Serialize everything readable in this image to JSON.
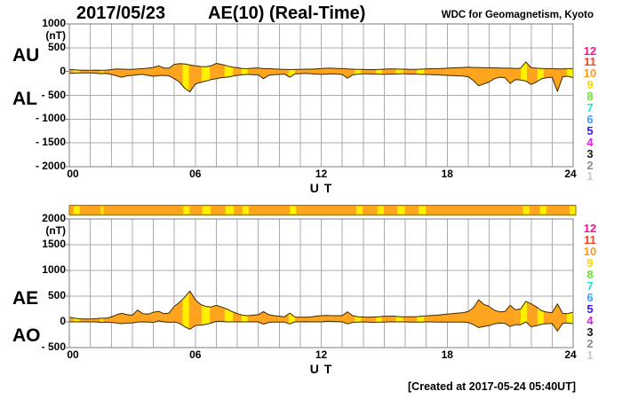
{
  "header": {
    "date": "2017/05/23",
    "title": "AE(10) (Real-Time)",
    "credit": "WDC for Geomagnetism, Kyoto"
  },
  "footer": {
    "created": "[Created at 2017-05-24 05:40UT]"
  },
  "colors": {
    "fill_10_stations": "#FFA41E",
    "fill_9_stations": "#FFF000",
    "curve_outline": "#3A2A00",
    "grid": "#ABABAB",
    "frame": "#7D7D7D",
    "bar_border": "#8B7500",
    "text": "#000000"
  },
  "station_scale": {
    "values": [
      "12",
      "11",
      "10",
      "9",
      "8",
      "7",
      "6",
      "5",
      "4",
      "3",
      "2",
      "1"
    ],
    "colors": [
      "#F2188C",
      "#FF4019",
      "#FF9C19",
      "#F0DC00",
      "#66E62B",
      "#19E6C8",
      "#3CA0FF",
      "#4019E6",
      "#E619E6",
      "#191919",
      "#8C8C8C",
      "#C8C8C8"
    ]
  },
  "availability_bar": {
    "full_value": 10,
    "partial_value": 9,
    "intervals_9_stations": [
      [
        0.2,
        0.5
      ],
      [
        1.5,
        1.62
      ],
      [
        5.4,
        5.7
      ],
      [
        6.3,
        6.7
      ],
      [
        7.4,
        7.8
      ],
      [
        8.2,
        8.5
      ],
      [
        10.45,
        10.75
      ],
      [
        13.6,
        13.9
      ],
      [
        14.6,
        14.9
      ],
      [
        15.55,
        15.9
      ],
      [
        16.55,
        16.9
      ],
      [
        21.5,
        21.8
      ],
      [
        22.3,
        22.6
      ],
      [
        23.7,
        24.0
      ]
    ]
  },
  "chart_data": [
    {
      "type": "area",
      "title": "AU and AL indices",
      "left_labels": [
        "AU",
        "AL"
      ],
      "ylabel_unit": "(nT)",
      "xlabel": "U T",
      "ylim": [
        -2000,
        1000
      ],
      "yticks": [
        {
          "v": 1000,
          "label": "1000"
        },
        {
          "v": 500,
          "label": "500"
        },
        {
          "v": 0,
          "label": "0"
        },
        {
          "v": -500,
          "label": "- 500"
        },
        {
          "v": -1000,
          "label": "- 1000"
        },
        {
          "v": -1500,
          "label": "- 1500"
        },
        {
          "v": -2000,
          "label": "- 2000"
        }
      ],
      "xticks": [
        {
          "v": 0,
          "label": "00"
        },
        {
          "v": 6,
          "label": "06"
        },
        {
          "v": 12,
          "label": "12"
        },
        {
          "v": 18,
          "label": "18"
        },
        {
          "v": 24,
          "label": "24"
        }
      ],
      "x": [
        0,
        0.25,
        0.5,
        0.75,
        1,
        1.25,
        1.5,
        1.75,
        2,
        2.25,
        2.5,
        2.75,
        3,
        3.25,
        3.5,
        3.75,
        4,
        4.25,
        4.5,
        4.75,
        5,
        5.25,
        5.5,
        5.75,
        6,
        6.25,
        6.5,
        6.75,
        7,
        7.25,
        7.5,
        7.75,
        8,
        8.25,
        8.5,
        8.75,
        9,
        9.25,
        9.5,
        9.75,
        10,
        10.25,
        10.5,
        10.75,
        11,
        11.25,
        11.5,
        11.75,
        12,
        12.25,
        12.5,
        12.75,
        13,
        13.25,
        13.5,
        13.75,
        14,
        14.25,
        14.5,
        14.75,
        15,
        15.25,
        15.5,
        15.75,
        16,
        16.25,
        16.5,
        16.75,
        17,
        17.25,
        17.5,
        17.75,
        18,
        18.25,
        18.5,
        18.75,
        19,
        19.25,
        19.5,
        19.75,
        20,
        20.25,
        20.5,
        20.75,
        21,
        21.25,
        21.5,
        21.75,
        22,
        22.25,
        22.5,
        22.75,
        23,
        23.25,
        23.5,
        23.75,
        24
      ],
      "series": [
        {
          "name": "AU",
          "values": [
            45,
            35,
            30,
            25,
            25,
            30,
            25,
            30,
            40,
            55,
            50,
            45,
            45,
            55,
            60,
            70,
            85,
            120,
            75,
            70,
            150,
            165,
            160,
            140,
            120,
            105,
            100,
            120,
            170,
            150,
            120,
            95,
            80,
            65,
            60,
            70,
            75,
            60,
            60,
            55,
            50,
            45,
            40,
            45,
            45,
            50,
            50,
            55,
            60,
            70,
            70,
            65,
            60,
            55,
            50,
            45,
            45,
            40,
            40,
            45,
            50,
            55,
            55,
            50,
            50,
            45,
            45,
            50,
            55,
            60,
            60,
            65,
            70,
            75,
            80,
            85,
            90,
            85,
            85,
            80,
            80,
            75,
            75,
            70,
            70,
            65,
            70,
            200,
            80,
            70,
            65,
            60,
            60,
            55,
            55,
            60,
            60
          ]
        },
        {
          "name": "AL",
          "values": [
            -40,
            -35,
            -30,
            -30,
            -30,
            -35,
            -45,
            -40,
            -60,
            -90,
            -120,
            -90,
            -80,
            -65,
            -60,
            -80,
            -100,
            -85,
            -80,
            -90,
            -150,
            -220,
            -350,
            -430,
            -260,
            -230,
            -200,
            -170,
            -150,
            -130,
            -120,
            -100,
            -80,
            -65,
            -60,
            -65,
            -70,
            -150,
            -80,
            -65,
            -60,
            -55,
            -120,
            -50,
            -45,
            -40,
            -45,
            -55,
            -60,
            -55,
            -50,
            -55,
            -60,
            -140,
            -70,
            -55,
            -50,
            -50,
            -55,
            -55,
            -60,
            -55,
            -55,
            -50,
            -50,
            -55,
            -55,
            -60,
            -60,
            -65,
            -70,
            -75,
            -80,
            -85,
            -90,
            -95,
            -110,
            -190,
            -300,
            -260,
            -220,
            -150,
            -120,
            -130,
            -250,
            -170,
            -180,
            -200,
            -270,
            -220,
            -150,
            -130,
            -120,
            -420,
            -110,
            -100,
            -130
          ]
        }
      ]
    },
    {
      "type": "area",
      "title": "AE and AO indices",
      "left_labels": [
        "AE",
        "AO"
      ],
      "ylabel_unit": "(nT)",
      "xlabel": "U T",
      "ylim": [
        -500,
        2000
      ],
      "yticks": [
        {
          "v": 2000,
          "label": "2000"
        },
        {
          "v": 1500,
          "label": "1500"
        },
        {
          "v": 1000,
          "label": "1000"
        },
        {
          "v": 500,
          "label": "500"
        },
        {
          "v": 0,
          "label": "0"
        },
        {
          "v": -500,
          "label": "- 500"
        }
      ],
      "xticks": [
        {
          "v": 0,
          "label": "00"
        },
        {
          "v": 6,
          "label": "06"
        },
        {
          "v": 12,
          "label": "12"
        },
        {
          "v": 18,
          "label": "18"
        },
        {
          "v": 24,
          "label": "24"
        }
      ],
      "x": [
        0,
        0.25,
        0.5,
        0.75,
        1,
        1.25,
        1.5,
        1.75,
        2,
        2.25,
        2.5,
        2.75,
        3,
        3.25,
        3.5,
        3.75,
        4,
        4.25,
        4.5,
        4.75,
        5,
        5.25,
        5.5,
        5.75,
        6,
        6.25,
        6.5,
        6.75,
        7,
        7.25,
        7.5,
        7.75,
        8,
        8.25,
        8.5,
        8.75,
        9,
        9.25,
        9.5,
        9.75,
        10,
        10.25,
        10.5,
        10.75,
        11,
        11.25,
        11.5,
        11.75,
        12,
        12.25,
        12.5,
        12.75,
        13,
        13.25,
        13.5,
        13.75,
        14,
        14.25,
        14.5,
        14.75,
        15,
        15.25,
        15.5,
        15.75,
        16,
        16.25,
        16.5,
        16.75,
        17,
        17.25,
        17.5,
        17.75,
        18,
        18.25,
        18.5,
        18.75,
        19,
        19.25,
        19.5,
        19.75,
        20,
        20.25,
        20.5,
        20.75,
        21,
        21.25,
        21.5,
        21.75,
        22,
        22.25,
        22.5,
        22.75,
        23,
        23.25,
        23.5,
        23.75,
        24
      ],
      "series": [
        {
          "name": "AE",
          "values": [
            90,
            70,
            60,
            55,
            55,
            60,
            70,
            70,
            95,
            140,
            165,
            140,
            130,
            230,
            160,
            150,
            185,
            205,
            160,
            170,
            300,
            380,
            480,
            600,
            430,
            340,
            300,
            290,
            320,
            290,
            250,
            200,
            160,
            130,
            120,
            130,
            140,
            200,
            140,
            120,
            110,
            100,
            170,
            95,
            90,
            90,
            95,
            110,
            120,
            125,
            120,
            120,
            120,
            195,
            120,
            100,
            95,
            90,
            95,
            100,
            110,
            110,
            110,
            100,
            100,
            100,
            100,
            110,
            115,
            125,
            130,
            140,
            150,
            160,
            170,
            180,
            200,
            275,
            430,
            340,
            300,
            225,
            195,
            200,
            320,
            235,
            250,
            400,
            350,
            290,
            215,
            190,
            180,
            350,
            165,
            160,
            190
          ]
        },
        {
          "name": "AO",
          "values": [
            0,
            0,
            0,
            0,
            0,
            0,
            -10,
            -5,
            -10,
            -20,
            -35,
            -25,
            -20,
            -5,
            0,
            -5,
            -10,
            20,
            0,
            -10,
            0,
            -30,
            -95,
            -145,
            -70,
            -65,
            -50,
            -25,
            10,
            10,
            0,
            0,
            0,
            0,
            0,
            0,
            0,
            -45,
            -10,
            -5,
            -5,
            -5,
            -40,
            0,
            0,
            5,
            0,
            0,
            0,
            10,
            10,
            5,
            0,
            -40,
            -10,
            -5,
            0,
            -5,
            -10,
            -5,
            -5,
            0,
            0,
            0,
            0,
            -5,
            -5,
            -5,
            0,
            0,
            -5,
            -5,
            -5,
            -5,
            -5,
            -5,
            -10,
            -55,
            -110,
            -90,
            -70,
            -40,
            -25,
            -30,
            -90,
            -55,
            -55,
            0,
            -95,
            -75,
            -45,
            -35,
            -30,
            -180,
            -30,
            -20,
            -35
          ]
        }
      ]
    }
  ]
}
